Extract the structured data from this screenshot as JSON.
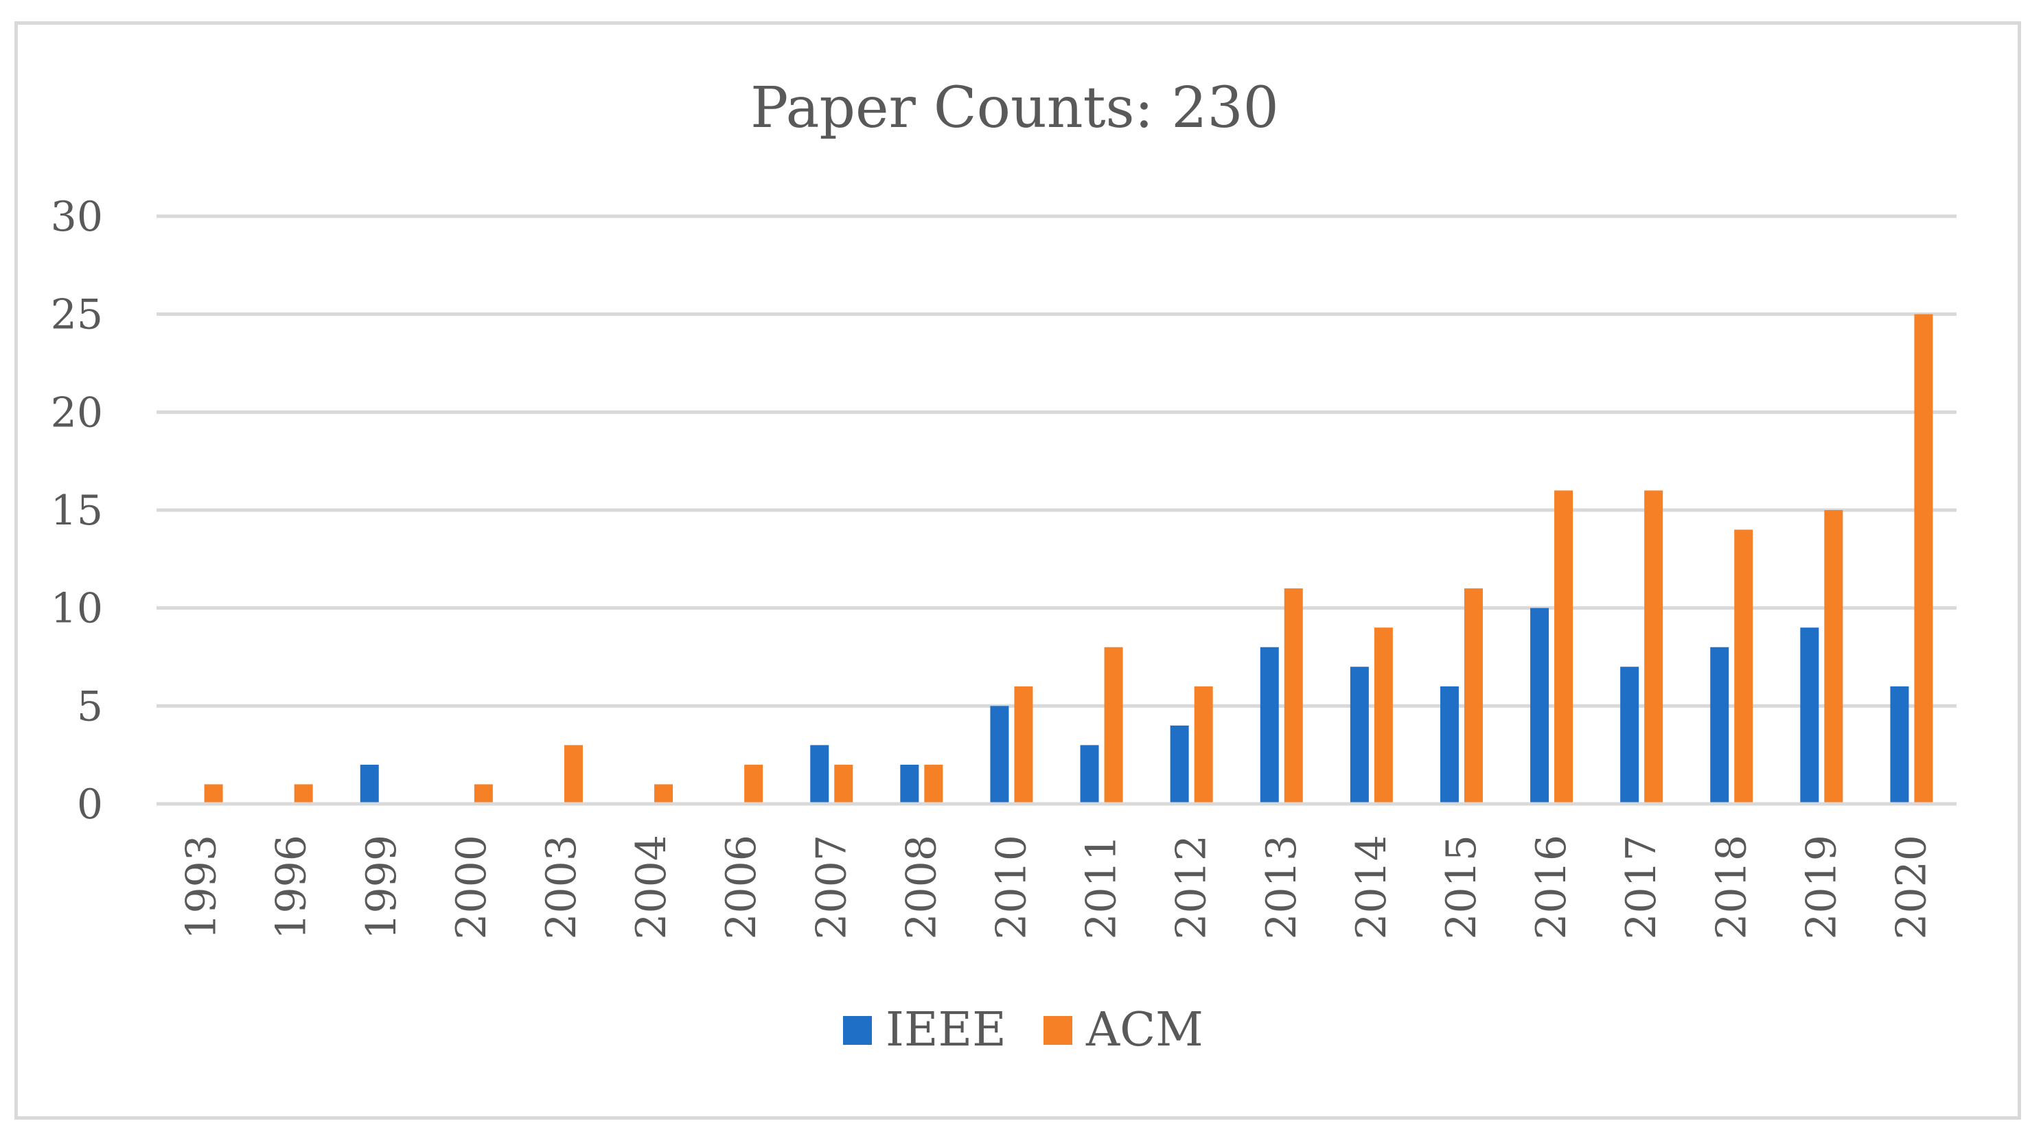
{
  "chart_data": {
    "type": "bar",
    "title": "Paper Counts: 230",
    "xlabel": "",
    "ylabel": "",
    "ylim": [
      0,
      30
    ],
    "yticks": [
      0,
      5,
      10,
      15,
      20,
      25,
      30
    ],
    "grid": true,
    "legend_position": "bottom",
    "categories": [
      "1993",
      "1996",
      "1999",
      "2000",
      "2003",
      "2004",
      "2006",
      "2007",
      "2008",
      "2010",
      "2011",
      "2012",
      "2013",
      "2014",
      "2015",
      "2016",
      "2017",
      "2018",
      "2019",
      "2020"
    ],
    "series": [
      {
        "name": "IEEE",
        "color": "#1f6fc6",
        "values": [
          0,
          0,
          2,
          0,
          0,
          0,
          0,
          3,
          2,
          5,
          3,
          4,
          8,
          7,
          6,
          10,
          7,
          8,
          9,
          6
        ]
      },
      {
        "name": "ACM",
        "color": "#f58025",
        "values": [
          1,
          1,
          0,
          1,
          3,
          1,
          2,
          2,
          2,
          6,
          8,
          6,
          11,
          9,
          11,
          16,
          16,
          14,
          15,
          25
        ]
      }
    ]
  }
}
